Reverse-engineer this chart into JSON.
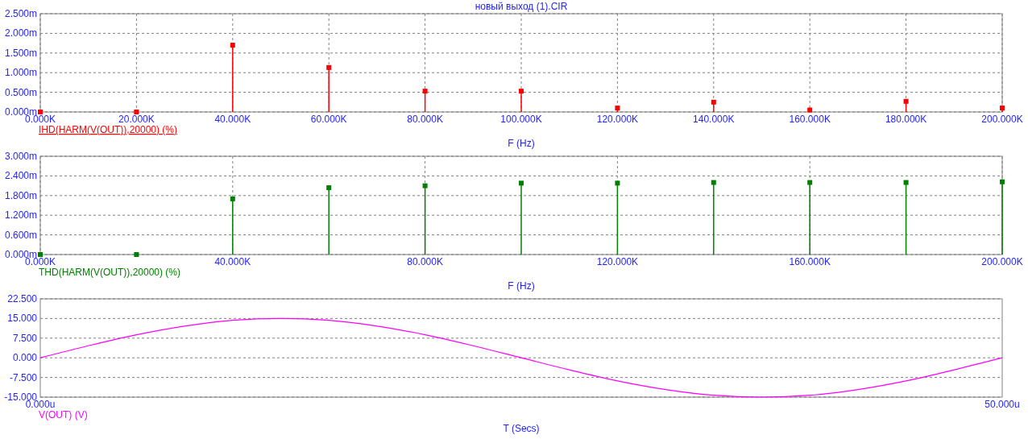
{
  "chart_data": [
    {
      "type": "lollipop",
      "title": "новый выход (1).CIR",
      "xlabel": "F (Hz)",
      "x": [
        0,
        20,
        40,
        60,
        80,
        100,
        120,
        140,
        160,
        180,
        200
      ],
      "series": [
        {
          "name": "IHD(HARM(V(OUT)),20000) (%)",
          "color": "#ff0000",
          "values": [
            0,
            0,
            1.7,
            1.13,
            0.53,
            0.53,
            0.1,
            0.25,
            0.05,
            0.27,
            0.1
          ]
        }
      ],
      "xlim": [
        0,
        200
      ],
      "xticks": [
        {
          "value": 0,
          "label": "0.000K"
        },
        {
          "value": 20,
          "label": "20.000K"
        },
        {
          "value": 40,
          "label": "40.000K"
        },
        {
          "value": 60,
          "label": "60.000K"
        },
        {
          "value": 80,
          "label": "80.000K"
        },
        {
          "value": 100,
          "label": "100.000K"
        },
        {
          "value": 120,
          "label": "120.000K"
        },
        {
          "value": 140,
          "label": "140.000K"
        },
        {
          "value": 160,
          "label": "160.000K"
        },
        {
          "value": 180,
          "label": "180.000K"
        },
        {
          "value": 200,
          "label": "200.000K"
        }
      ],
      "ylim": [
        0,
        2.5
      ],
      "yticks": [
        {
          "value": 0,
          "label": "0.000m"
        },
        {
          "value": 0.5,
          "label": "0.500m"
        },
        {
          "value": 1,
          "label": "1.000m"
        },
        {
          "value": 1.5,
          "label": "1.500m"
        },
        {
          "value": 2,
          "label": "2.000m"
        },
        {
          "value": 2.5,
          "label": "2.500m"
        }
      ],
      "grid": true,
      "legend": "bottom left",
      "marker": "square"
    },
    {
      "type": "lollipop",
      "xlabel": "F (Hz)",
      "x": [
        0,
        20,
        40,
        60,
        80,
        100,
        120,
        140,
        160,
        180,
        200
      ],
      "series": [
        {
          "name": "THD(HARM(V(OUT)),20000) (%)",
          "color": "#008000",
          "values": [
            0,
            0,
            1.7,
            2.04,
            2.1,
            2.18,
            2.18,
            2.2,
            2.2,
            2.2,
            2.22
          ]
        }
      ],
      "xlim": [
        0,
        200
      ],
      "xticks": [
        {
          "value": 0,
          "label": "0.000K"
        },
        {
          "value": 40,
          "label": "40.000K"
        },
        {
          "value": 80,
          "label": "80.000K"
        },
        {
          "value": 120,
          "label": "120.000K"
        },
        {
          "value": 160,
          "label": "160.000K"
        },
        {
          "value": 200,
          "label": "200.000K"
        }
      ],
      "ylim": [
        0,
        3
      ],
      "yticks": [
        {
          "value": 0,
          "label": "0.000m"
        },
        {
          "value": 0.6,
          "label": "0.600m"
        },
        {
          "value": 1.2,
          "label": "1.200m"
        },
        {
          "value": 1.8,
          "label": "1.800m"
        },
        {
          "value": 2.4,
          "label": "2.400m"
        },
        {
          "value": 3,
          "label": "3.000m"
        }
      ],
      "grid": true,
      "legend": "bottom left",
      "marker": "square"
    },
    {
      "type": "line",
      "xlabel": "T (Secs)",
      "x": [
        0,
        2.5,
        5,
        7.5,
        10,
        12.5,
        15,
        17.5,
        20,
        22.5,
        25,
        27.5,
        30,
        32.5,
        35,
        37.5,
        40,
        42.5,
        45,
        47.5,
        50
      ],
      "series": [
        {
          "name": "V(OUT) (V)",
          "color": "#ff00ff",
          "values": [
            0,
            4.6,
            8.8,
            12.1,
            14.3,
            15,
            14.3,
            12.1,
            8.8,
            4.6,
            0,
            -4.6,
            -8.8,
            -12.1,
            -14.3,
            -15,
            -14.3,
            -12.1,
            -8.8,
            -4.6,
            0
          ]
        }
      ],
      "xlim": [
        0,
        50
      ],
      "xticks": [
        {
          "value": 0,
          "label": "0.000u"
        },
        {
          "value": 50,
          "label": "50.000u"
        }
      ],
      "ylim": [
        -15,
        22.5
      ],
      "yticks": [
        {
          "value": -15,
          "label": "-15.000"
        },
        {
          "value": -7.5,
          "label": "-7.500"
        },
        {
          "value": 0,
          "label": "0.000"
        },
        {
          "value": 7.5,
          "label": "7.500"
        },
        {
          "value": 15,
          "label": "15.000"
        },
        {
          "value": 22.5,
          "label": "22.500"
        }
      ],
      "grid": "y",
      "legend": "bottom left",
      "marker": "none"
    }
  ]
}
